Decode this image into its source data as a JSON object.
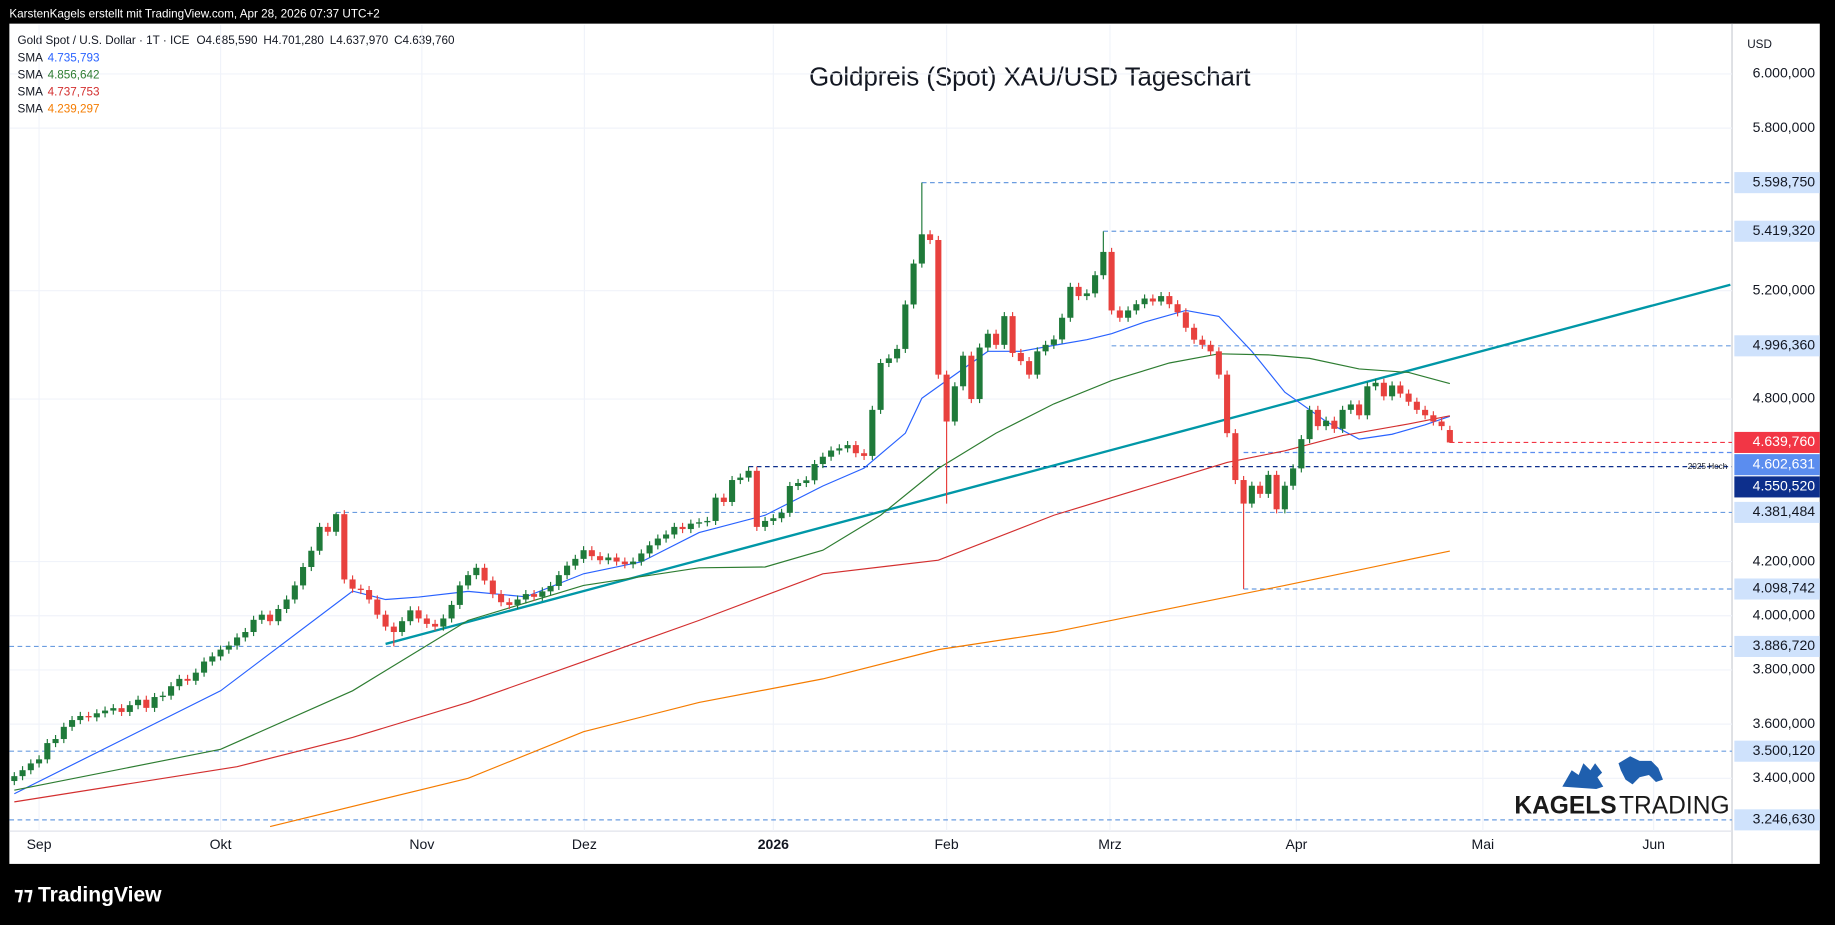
{
  "header": {
    "caption": "KarstenKagels erstellt mit TradingView.com, Apr 28, 2026 07:37 UTC+2",
    "symbol": "Gold Spot / U.S. Dollar · 1T · ICE",
    "ohlc": [
      "O4.685,590",
      "H4.701,280",
      "L4.637,970",
      "C4.639,760"
    ]
  },
  "watermark": [
    "KAGELS",
    "TRADING"
  ],
  "footer": {
    "brand": "TradingView"
  },
  "chart_data": {
    "type": "candlestick",
    "title": "Goldpreis (Spot) XAU/USD Tageschart",
    "y_unit": "USD",
    "up_color": "#1f7a3a",
    "down_color": "#e8413e",
    "grid": true,
    "xlim": [
      -0.6,
      208.2
    ],
    "xticks": [
      {
        "value": 3,
        "label": "Sep"
      },
      {
        "value": 25,
        "label": "Okt"
      },
      {
        "value": 49.4,
        "label": "Nov"
      },
      {
        "value": 69.1,
        "label": "Dez"
      },
      {
        "value": 92,
        "label": "2026",
        "bold": true
      },
      {
        "value": 113,
        "label": "Feb"
      },
      {
        "value": 132.8,
        "label": "Mrz"
      },
      {
        "value": 155.4,
        "label": "Apr"
      },
      {
        "value": 178,
        "label": "Mai"
      },
      {
        "value": 198.7,
        "label": "Jun"
      }
    ],
    "ylim": [
      3205,
      6164
    ],
    "yticks": [
      {
        "value": 6000,
        "label": "6.000,000"
      },
      {
        "value": 5800,
        "label": "5.800,000"
      },
      {
        "value": 5200,
        "label": "5.200,000"
      },
      {
        "value": 4800,
        "label": "4.800,000"
      },
      {
        "value": 4200,
        "label": "4.200,000"
      },
      {
        "value": 4000,
        "label": "4.000,000"
      },
      {
        "value": 3800,
        "label": "3.800,000"
      },
      {
        "value": 3600,
        "label": "3.600,000"
      },
      {
        "value": 3400,
        "label": "3.400,000"
      }
    ],
    "x": [
      0,
      1,
      2,
      3,
      4,
      5,
      6,
      7,
      8,
      9,
      10,
      11,
      12,
      13,
      14,
      15,
      16,
      17,
      18,
      19,
      20,
      21,
      22,
      23,
      24,
      25,
      26,
      27,
      28,
      29,
      30,
      31,
      32,
      33,
      34,
      35,
      36,
      37,
      38,
      39,
      40,
      41,
      42,
      43,
      44,
      45,
      46,
      47,
      48,
      49,
      50,
      51,
      52,
      53,
      54,
      55,
      56,
      57,
      58,
      59,
      60,
      61,
      62,
      63,
      64,
      65,
      66,
      67,
      68,
      69,
      70,
      71,
      72,
      73,
      74,
      75,
      76,
      77,
      78,
      79,
      80,
      81,
      82,
      83,
      84,
      85,
      86,
      87,
      88,
      89,
      90,
      91,
      92,
      93,
      94,
      95,
      96,
      97,
      98,
      99,
      100,
      101,
      102,
      103,
      104,
      105,
      106,
      107,
      108,
      109,
      110,
      111,
      112,
      113,
      114,
      115,
      116,
      117,
      118,
      119,
      120,
      121,
      122,
      123,
      124,
      125,
      126,
      127,
      128,
      129,
      130,
      131,
      132,
      133,
      134,
      135,
      136,
      137,
      138,
      139,
      140,
      141,
      142,
      143,
      144,
      145,
      146,
      147,
      148,
      149,
      150,
      151,
      152,
      153,
      154,
      155,
      156,
      157,
      158,
      159,
      160,
      161,
      162,
      163,
      164,
      165,
      166,
      167,
      168,
      169,
      170,
      171,
      172,
      173,
      174
    ],
    "open": [
      3390,
      3408,
      3430,
      3455,
      3470,
      3530,
      3545,
      3590,
      3615,
      3630,
      3625,
      3640,
      3650,
      3659,
      3645,
      3670,
      3690,
      3660,
      3700,
      3705,
      3740,
      3767,
      3760,
      3790,
      3831,
      3850,
      3875,
      3890,
      3920,
      3940,
      3985,
      4004,
      3980,
      4025,
      4060,
      4112,
      4180,
      4240,
      4328,
      4310,
      4375,
      4134,
      4100,
      4095,
      4060,
      4004,
      3960,
      3940,
      3980,
      4020,
      3990,
      3970,
      3960,
      3990,
      4040,
      4112,
      4150,
      4177,
      4130,
      4080,
      4050,
      4040,
      4060,
      4080,
      4070,
      4090,
      4110,
      4150,
      4185,
      4210,
      4242,
      4220,
      4205,
      4215,
      4200,
      4190,
      4200,
      4230,
      4260,
      4285,
      4300,
      4328,
      4320,
      4340,
      4345,
      4350,
      4436,
      4420,
      4501,
      4510,
      4535,
      4328,
      4350,
      4360,
      4380,
      4479,
      4490,
      4500,
      4560,
      4587,
      4610,
      4618,
      4630,
      4600,
      4590,
      4760,
      4933,
      4950,
      4985,
      5149,
      5300,
      5408,
      5387,
      4890,
      4717,
      4847,
      4960,
      4800,
      4990,
      5041,
      5000,
      5106,
      4970,
      4940,
      4890,
      4976,
      5000,
      5020,
      5100,
      5214,
      5180,
      5190,
      5257,
      5343,
      5127,
      5100,
      5127,
      5150,
      5171,
      5160,
      5180,
      5150,
      5120,
      5063,
      5019,
      5000,
      4976,
      4890,
      4674,
      4501,
      4414,
      4480,
      4450,
      4520,
      4393,
      4480,
      4544,
      4652,
      4760,
      4700,
      4720,
      4690,
      4760,
      4780,
      4740,
      4847,
      4860,
      4810,
      4850,
      4820,
      4790,
      4760,
      4740,
      4717,
      4685.59
    ],
    "high": [
      3423,
      3445,
      3470,
      3485,
      3545,
      3560,
      3605,
      3630,
      3645,
      3645,
      3655,
      3665,
      3674,
      3674,
      3685,
      3705,
      3705,
      3715,
      3720,
      3755,
      3782,
      3782,
      3805,
      3846,
      3865,
      3890,
      3905,
      3935,
      3955,
      4000,
      4019,
      4019,
      4040,
      4075,
      4127,
      4195,
      4255,
      4343,
      4343,
      4381,
      4390,
      4149,
      4115,
      4110,
      4075,
      4019,
      3975,
      3995,
      4035,
      4035,
      4005,
      3985,
      4005,
      4055,
      4127,
      4165,
      4192,
      4192,
      4145,
      4095,
      4065,
      4075,
      4095,
      4095,
      4105,
      4125,
      4165,
      4200,
      4225,
      4257,
      4257,
      4235,
      4230,
      4230,
      4215,
      4215,
      4245,
      4275,
      4300,
      4315,
      4343,
      4343,
      4355,
      4360,
      4365,
      4451,
      4451,
      4516,
      4525,
      4551,
      4550,
      4365,
      4375,
      4395,
      4494,
      4505,
      4515,
      4575,
      4602,
      4625,
      4633,
      4645,
      4645,
      4615,
      4775,
      4948,
      4965,
      5000,
      5164,
      5315,
      5599,
      5423,
      5402,
      4905,
      4862,
      4975,
      4975,
      5005,
      5056,
      5056,
      5121,
      5121,
      4985,
      4955,
      4991,
      5015,
      5035,
      5115,
      5229,
      5229,
      5205,
      5272,
      5419,
      5358,
      5142,
      5142,
      5165,
      5186,
      5186,
      5195,
      5195,
      5165,
      5135,
      5078,
      5034,
      5015,
      4991,
      4905,
      4689,
      4516,
      4495,
      4495,
      4535,
      4535,
      4495,
      4559,
      4667,
      4775,
      4775,
      4735,
      4735,
      4775,
      4795,
      4795,
      4862,
      4875,
      4875,
      4865,
      4865,
      4835,
      4805,
      4775,
      4755,
      4732,
      4701.28
    ],
    "low": [
      3375,
      3393,
      3415,
      3440,
      3455,
      3515,
      3530,
      3575,
      3600,
      3610,
      3610,
      3625,
      3635,
      3630,
      3630,
      3655,
      3645,
      3645,
      3685,
      3690,
      3725,
      3745,
      3745,
      3775,
      3816,
      3835,
      3860,
      3875,
      3905,
      3925,
      3970,
      3965,
      3965,
      4010,
      4045,
      4097,
      4165,
      4225,
      4295,
      4295,
      4119,
      4085,
      4080,
      4045,
      3989,
      3945,
      3887,
      3925,
      3965,
      3975,
      3955,
      3945,
      3945,
      3975,
      4025,
      4097,
      4135,
      4115,
      4065,
      4035,
      4025,
      4025,
      4045,
      4055,
      4055,
      4075,
      4095,
      4135,
      4170,
      4195,
      4205,
      4190,
      4190,
      4185,
      4175,
      4175,
      4185,
      4215,
      4245,
      4270,
      4285,
      4305,
      4305,
      4325,
      4330,
      4335,
      4405,
      4405,
      4486,
      4495,
      4313,
      4313,
      4335,
      4345,
      4365,
      4464,
      4475,
      4485,
      4545,
      4572,
      4595,
      4603,
      4585,
      4575,
      4575,
      4745,
      4918,
      4935,
      4970,
      5134,
      5285,
      5372,
      4875,
      4414,
      4702,
      4832,
      4785,
      4785,
      4975,
      4985,
      4985,
      4955,
      4925,
      4875,
      4875,
      4961,
      4985,
      5005,
      5085,
      5165,
      5165,
      5175,
      5242,
      5112,
      5085,
      5085,
      5112,
      5135,
      5145,
      5145,
      5135,
      5105,
      5048,
      5004,
      4985,
      4961,
      4875,
      4659,
      4486,
      4099,
      4399,
      4435,
      4435,
      4378,
      4378,
      4465,
      4529,
      4637,
      4685,
      4685,
      4675,
      4675,
      4745,
      4725,
      4725,
      4832,
      4795,
      4795,
      4805,
      4775,
      4745,
      4725,
      4702,
      4685,
      4637.97
    ],
    "close": [
      3408,
      3430,
      3455,
      3470,
      3530,
      3545,
      3590,
      3615,
      3630,
      3625,
      3640,
      3650,
      3659,
      3645,
      3670,
      3690,
      3660,
      3700,
      3705,
      3740,
      3767,
      3760,
      3790,
      3831,
      3850,
      3875,
      3890,
      3920,
      3940,
      3985,
      4004,
      3980,
      4025,
      4060,
      4112,
      4180,
      4240,
      4328,
      4310,
      4375,
      4134,
      4100,
      4095,
      4060,
      4004,
      3960,
      3940,
      3980,
      4020,
      3990,
      3970,
      3960,
      3990,
      4040,
      4112,
      4150,
      4177,
      4130,
      4080,
      4050,
      4040,
      4060,
      4080,
      4070,
      4090,
      4110,
      4150,
      4185,
      4210,
      4242,
      4220,
      4205,
      4215,
      4200,
      4190,
      4200,
      4230,
      4260,
      4285,
      4300,
      4328,
      4320,
      4340,
      4345,
      4350,
      4436,
      4420,
      4501,
      4510,
      4535,
      4328,
      4350,
      4360,
      4380,
      4479,
      4490,
      4500,
      4560,
      4587,
      4610,
      4618,
      4630,
      4600,
      4590,
      4760,
      4933,
      4950,
      4985,
      5149,
      5300,
      5408,
      5387,
      4890,
      4717,
      4847,
      4960,
      4800,
      4990,
      5041,
      5000,
      5106,
      4970,
      4940,
      4890,
      4976,
      5000,
      5020,
      5100,
      5214,
      5180,
      5190,
      5257,
      5343,
      5127,
      5100,
      5127,
      5150,
      5171,
      5160,
      5180,
      5150,
      5120,
      5063,
      5019,
      5000,
      4976,
      4890,
      4674,
      4501,
      4414,
      4480,
      4450,
      4520,
      4393,
      4480,
      4544,
      4652,
      4760,
      4700,
      4720,
      4690,
      4760,
      4780,
      4740,
      4847,
      4860,
      4810,
      4850,
      4820,
      4790,
      4760,
      4740,
      4717,
      4700,
      4639.76
    ],
    "series": [
      {
        "name": "SMA",
        "value_label": "4.735,793",
        "color": "#2962ff",
        "x": [
          0,
          25,
          41,
          45,
          49,
          55,
          62,
          69,
          76,
          83,
          91,
          98,
          103,
          108,
          110,
          113,
          118,
          122,
          126,
          130,
          133,
          137,
          142,
          146,
          150,
          154,
          159,
          163,
          167,
          171,
          174
        ],
        "values": [
          3343,
          3723,
          4091,
          4060,
          4069,
          4090,
          4070,
          4155,
          4199,
          4307,
          4371,
          4479,
          4545,
          4674,
          4803,
          4868,
          4976,
          4976,
          4998,
          5019,
          5041,
          5084,
          5127,
          5105,
          4976,
          4825,
          4717,
          4652,
          4670,
          4705,
          4736
        ]
      },
      {
        "name": "SMA",
        "value_label": "4.856,642",
        "color": "#2e7d32",
        "x": [
          0,
          25,
          41,
          55,
          69,
          83,
          91,
          98,
          105,
          112,
          119,
          126,
          133,
          140,
          146,
          152,
          157,
          163,
          169,
          174
        ],
        "values": [
          3356,
          3507,
          3723,
          3983,
          4112,
          4177,
          4180,
          4242,
          4371,
          4544,
          4674,
          4782,
          4868,
          4933,
          4967,
          4963,
          4950,
          4911,
          4898,
          4857
        ]
      },
      {
        "name": "SMA",
        "value_label": "4.737,753",
        "color": "#d32f2f",
        "x": [
          0,
          27,
          41,
          55,
          69,
          83,
          98,
          112,
          126,
          140,
          147,
          154,
          161,
          169,
          174
        ],
        "values": [
          3313,
          3443,
          3551,
          3680,
          3831,
          3983,
          4155,
          4205,
          4371,
          4501,
          4566,
          4609,
          4665,
          4708,
          4738
        ]
      },
      {
        "name": "SMA",
        "value_label": "4.239,297",
        "color": "#f57c00",
        "x": [
          31,
          55,
          69,
          83,
          98,
          112,
          126,
          140,
          154,
          174
        ],
        "values": [
          3222,
          3400,
          3572,
          3680,
          3767,
          3875,
          3940,
          4026,
          4112,
          4239
        ]
      }
    ],
    "trendline": {
      "x": [
        45,
        208
      ],
      "values": [
        3896,
        5222
      ],
      "color": "#0097a7"
    },
    "levels": [
      {
        "value": 5598.75,
        "label": "5.598,750",
        "start": 110,
        "fill": "#cfe2fc",
        "text_color": "#131722"
      },
      {
        "value": 5419.32,
        "label": "5.419,320",
        "start": 132,
        "fill": "#cfe2fc",
        "text_color": "#131722"
      },
      {
        "value": 4996.36,
        "label": "4.996,360",
        "start": 133,
        "fill": "#cfe2fc",
        "text_color": "#131722"
      },
      {
        "value": 4639.76,
        "label": "4.639,760",
        "start": 174,
        "fill": "#f23645",
        "text_color": "#ffffff"
      },
      {
        "value": 4602.631,
        "label": "4.602,631",
        "start": 149,
        "fill": "#5b8def",
        "text_color": "#ffffff"
      },
      {
        "value": 4550.52,
        "label": "4.550,520",
        "start": 89,
        "fill": "#0d2f8c",
        "text_color": "#ffffff",
        "note": "2025 Hoch"
      },
      {
        "value": 4381.484,
        "label": "4.381,484",
        "start": 39,
        "fill": "#cfe2fc",
        "text_color": "#131722"
      },
      {
        "value": 4098.742,
        "label": "4.098,742",
        "start": 149,
        "fill": "#cfe2fc",
        "text_color": "#131722"
      },
      {
        "value": 3886.72,
        "label": "3.886,720",
        "fill": "#cfe2fc",
        "text_color": "#131722"
      },
      {
        "value": 3500.12,
        "label": "3.500,120",
        "fill": "#cfe2fc",
        "text_color": "#131722"
      },
      {
        "value": 3246.63,
        "label": "3.246,630",
        "fill": "#cfe2fc",
        "text_color": "#131722"
      }
    ]
  }
}
